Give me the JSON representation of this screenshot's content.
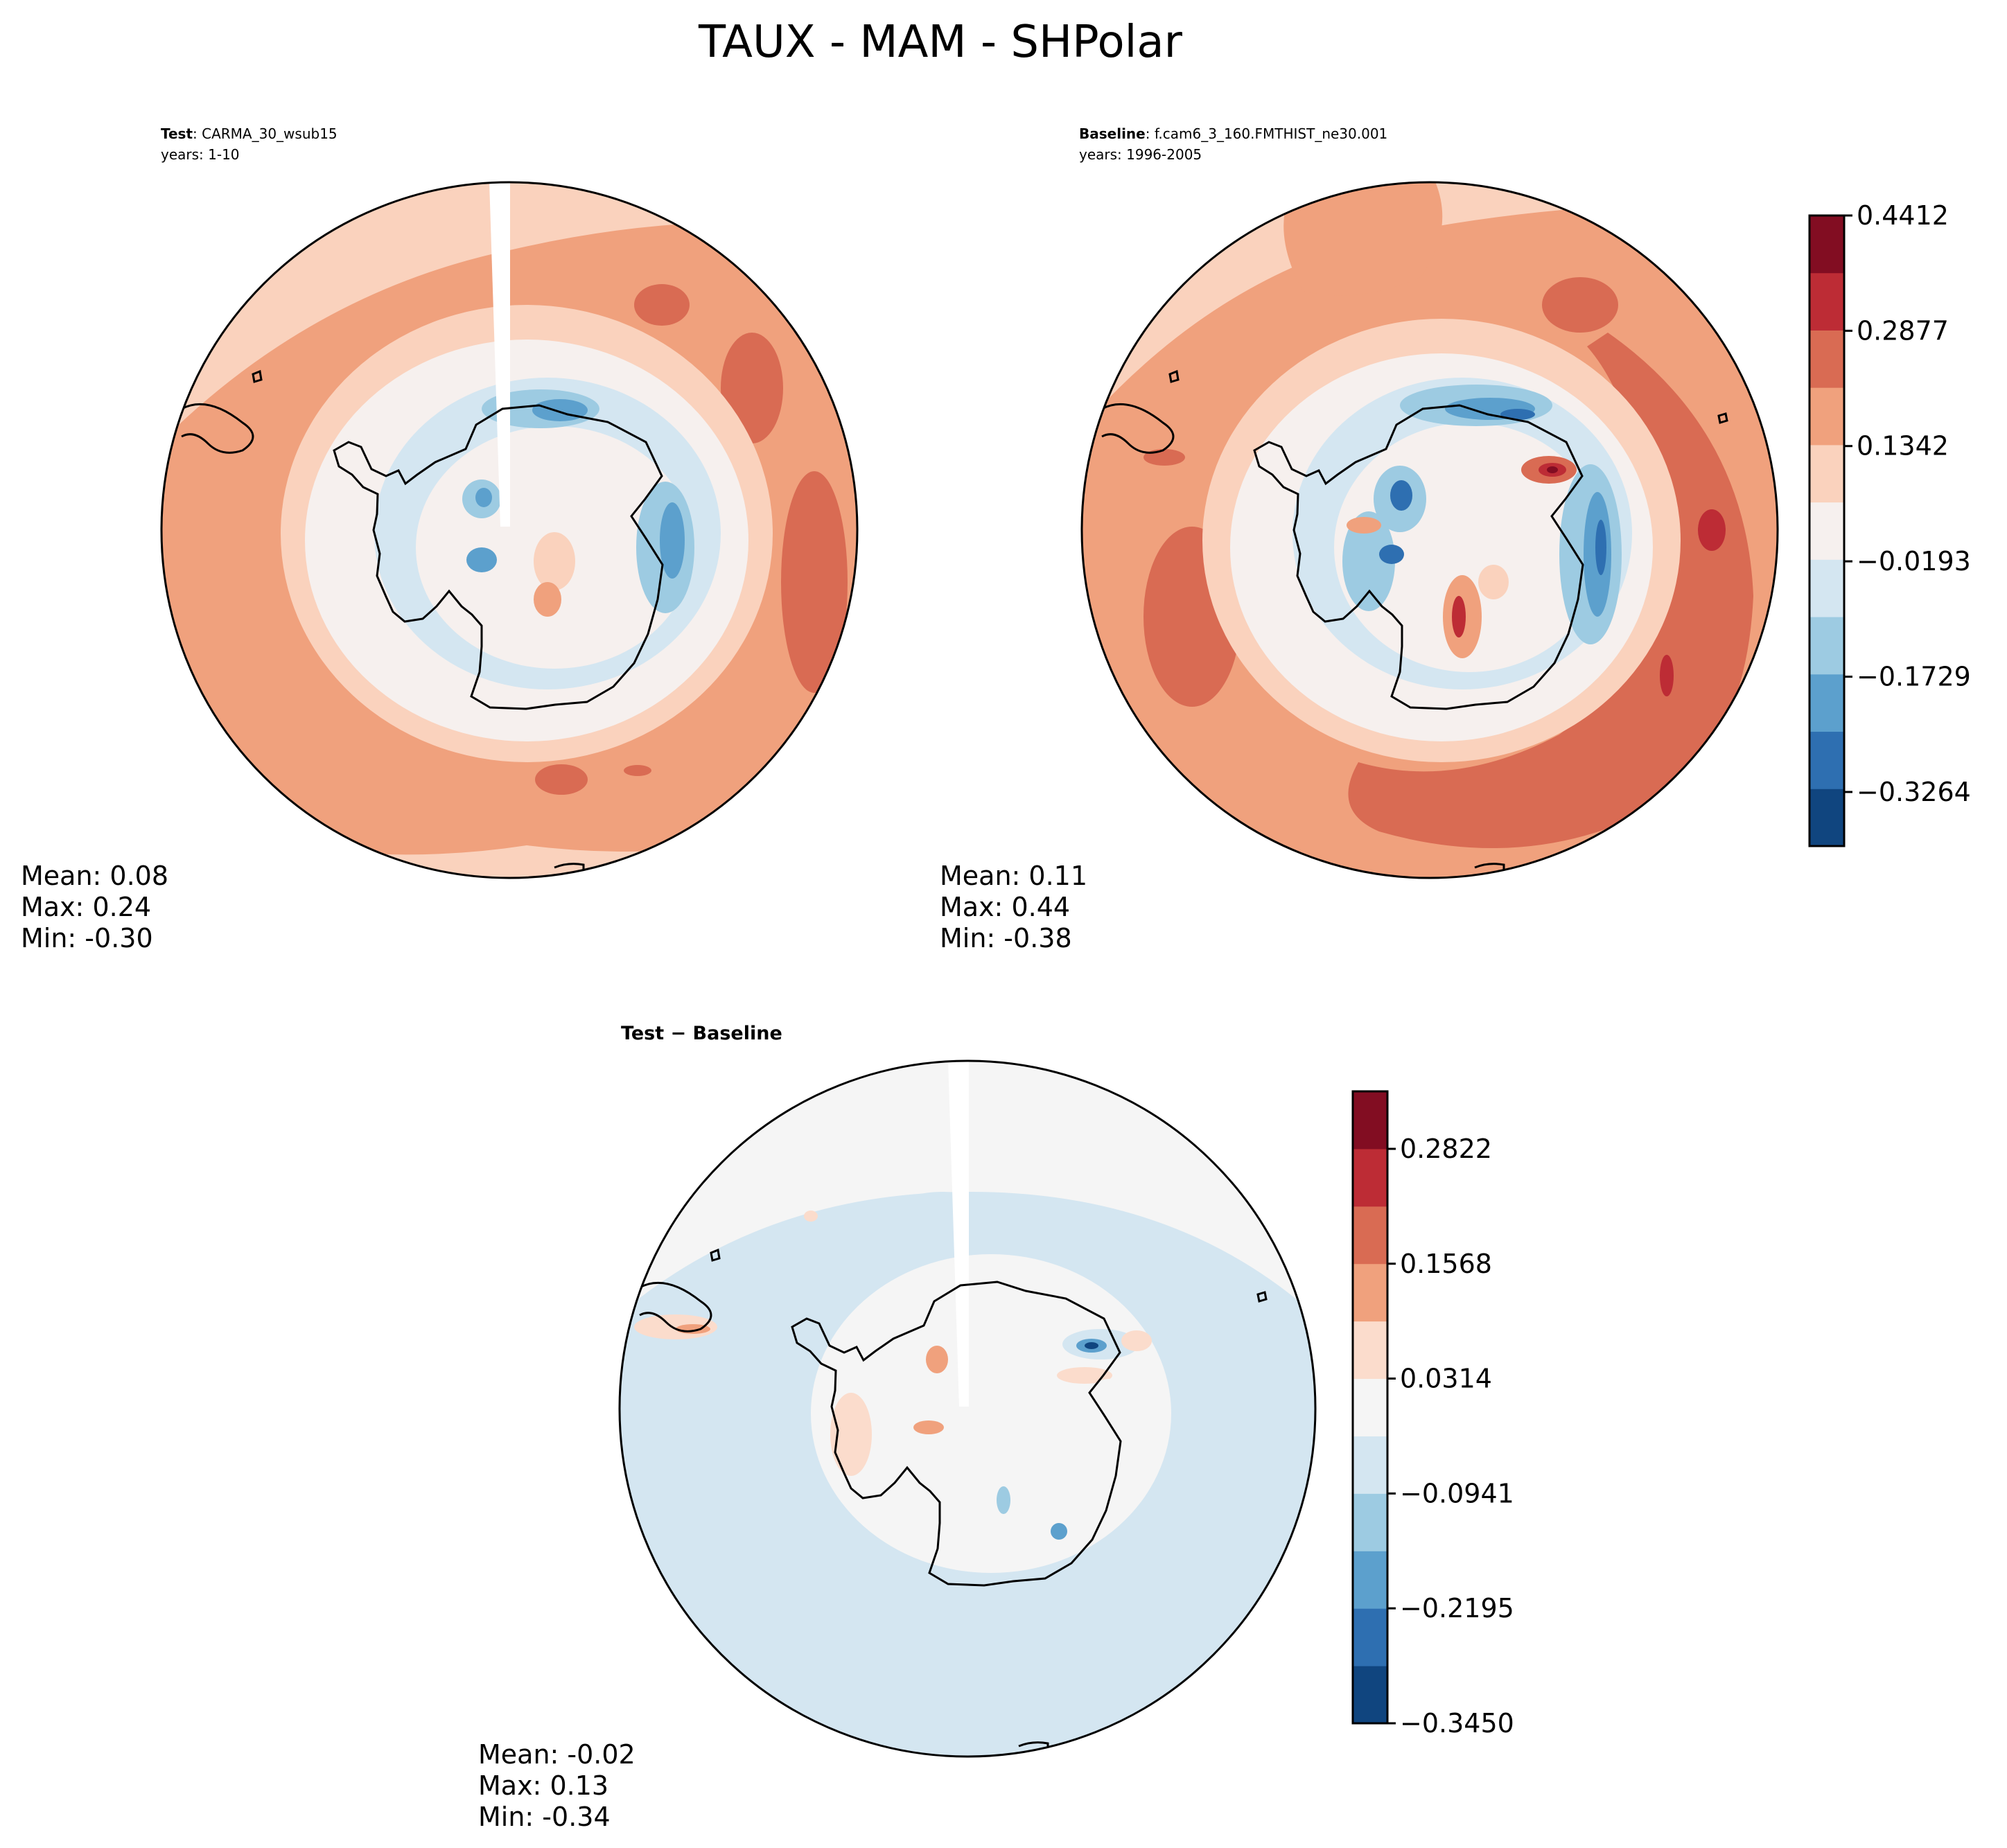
{
  "figure": {
    "title": "TAUX - MAM - SHPolar"
  },
  "panels": [
    {
      "id": "test",
      "header_bold": "Test",
      "header_rest": ": CARMA_30_wsub15",
      "years": "years: 1-10",
      "stats": [
        "Mean:  0.08",
        "Max:  0.24",
        "Min: -0.30"
      ]
    },
    {
      "id": "baseline",
      "header_bold": "Baseline",
      "header_rest": ": f.cam6_3_160.FMTHIST_ne30.001",
      "years": "years: 1996-2005",
      "stats": [
        "Mean:  0.11",
        "Max:  0.44",
        "Min: -0.38"
      ]
    },
    {
      "id": "diff",
      "header_bold": "Test − Baseline",
      "header_rest": "",
      "years": "",
      "stats": [
        "Mean: -0.02",
        "Max:  0.13",
        "Min: -0.34"
      ]
    }
  ],
  "colorbars": [
    {
      "id": "main",
      "colors": [
        "#10457f",
        "#2e6fb1",
        "#5ca0cd",
        "#9dcbe2",
        "#d4e6f1",
        "#f6f0ee",
        "#fad2bd",
        "#f0a17d",
        "#d96b53",
        "#bd2c35",
        "#820d22"
      ],
      "tick_labels": [
        "0.4412",
        "0.2877",
        "0.1342",
        "−0.0193",
        "−0.1729",
        "−0.3264"
      ],
      "tick_values": [
        0.4412,
        0.2877,
        0.1342,
        -0.0193,
        -0.1729,
        -0.3264
      ],
      "vmin": -0.3984,
      "vmax": 0.4412
    },
    {
      "id": "diff",
      "colors": [
        "#10457f",
        "#2e6fb1",
        "#5ca0cd",
        "#9dcbe2",
        "#d4e6f1",
        "#f5f5f5",
        "#fbdccc",
        "#f0a17d",
        "#d96b53",
        "#bd2c35",
        "#820d22"
      ],
      "tick_labels": [
        "0.2822",
        "0.1568",
        "0.0314",
        "−0.0941",
        "−0.2195",
        "−0.3450"
      ],
      "tick_values": [
        0.2822,
        0.1568,
        0.0314,
        -0.0941,
        -0.2195,
        -0.345
      ],
      "vmin": -0.345,
      "vmax": 0.345
    }
  ],
  "chart_data": [
    {
      "type": "heatmap",
      "title": "Test: CARMA_30_wsub15",
      "subtitle": "years: 1-10",
      "projection": "south polar stereographic",
      "colorbar_ticks": [
        0.4412,
        0.2877,
        0.1342,
        -0.0193,
        -0.1729,
        -0.3264
      ],
      "stats": {
        "mean": 0.08,
        "max": 0.24,
        "min": -0.3
      }
    },
    {
      "type": "heatmap",
      "title": "Baseline: f.cam6_3_160.FMTHIST_ne30.001",
      "subtitle": "years: 1996-2005",
      "projection": "south polar stereographic",
      "colorbar_ticks": [
        0.4412,
        0.2877,
        0.1342,
        -0.0193,
        -0.1729,
        -0.3264
      ],
      "stats": {
        "mean": 0.11,
        "max": 0.44,
        "min": -0.38
      }
    },
    {
      "type": "heatmap",
      "title": "Test − Baseline",
      "projection": "south polar stereographic",
      "colorbar_ticks": [
        0.2822,
        0.1568,
        0.0314,
        -0.0941,
        -0.2195,
        -0.345
      ],
      "stats": {
        "mean": -0.02,
        "max": 0.13,
        "min": -0.34
      }
    }
  ]
}
